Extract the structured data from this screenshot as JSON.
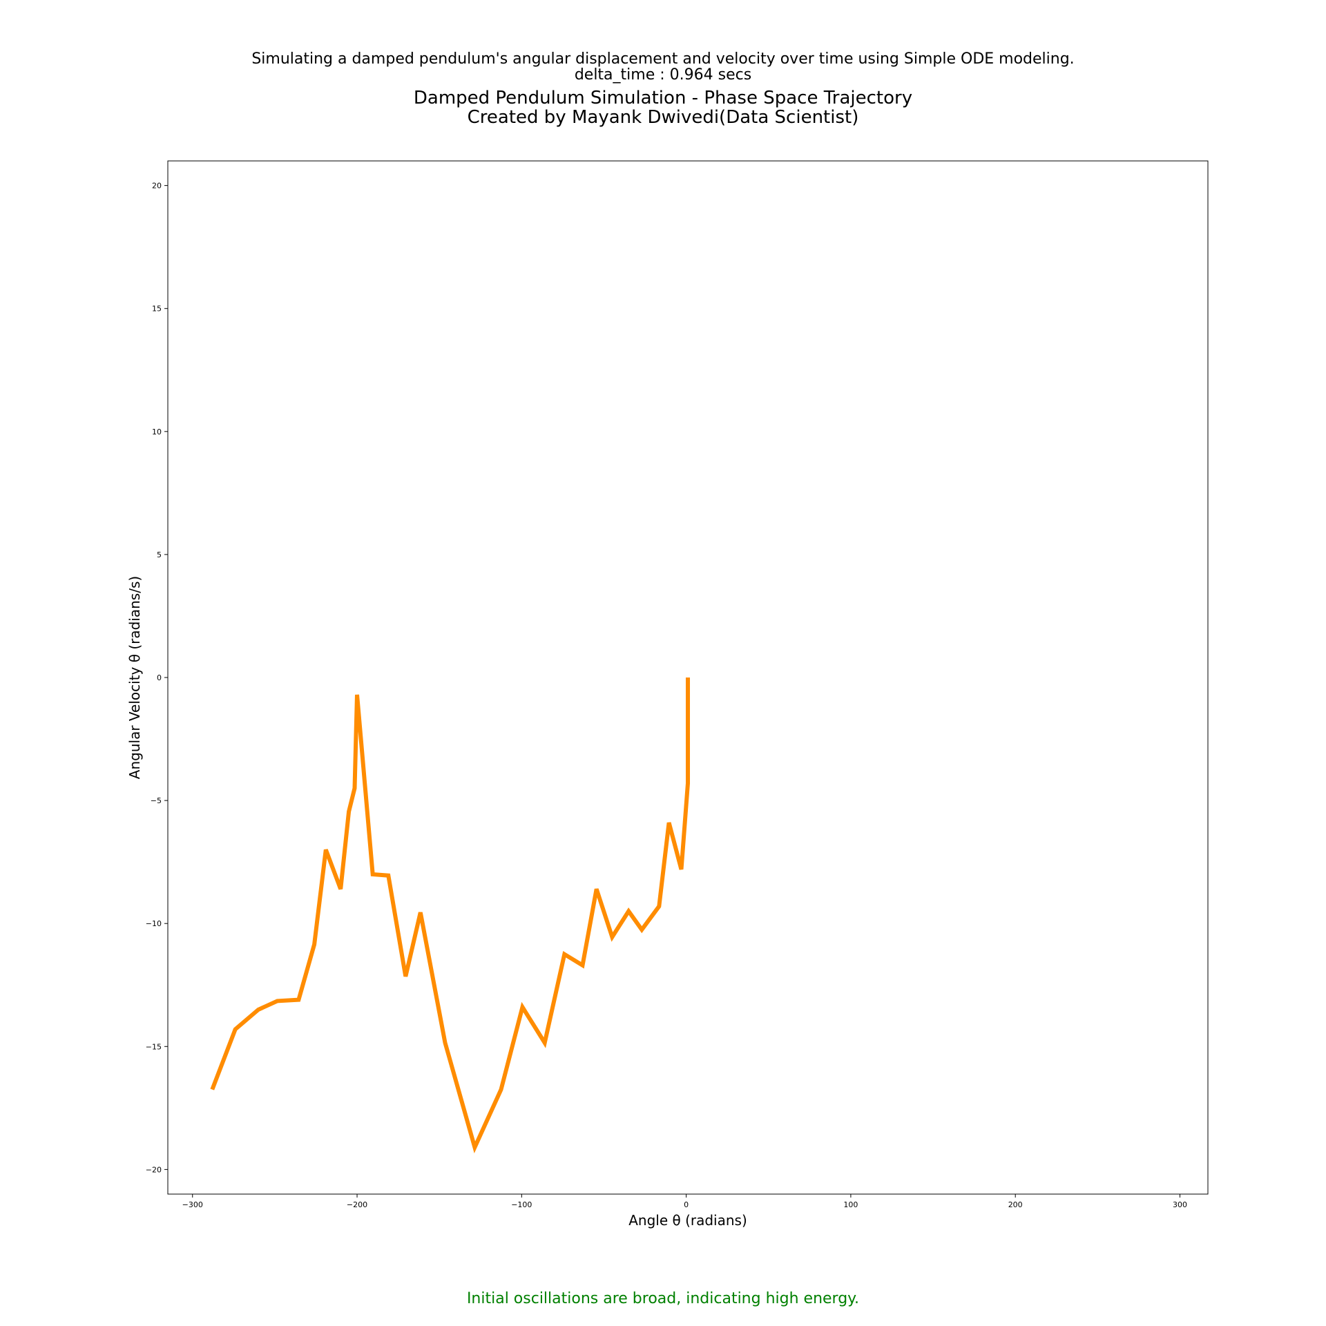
{
  "header": {
    "subtitle_line1": "Simulating a damped pendulum's angular displacement and velocity over time using Simple ODE modeling.",
    "subtitle_line2": "delta_time : 0.964 secs"
  },
  "footer": {
    "note": "Initial oscillations are broad, indicating high energy.",
    "note_color": "#008000"
  },
  "chart_data": {
    "type": "line",
    "title_line1": "Damped Pendulum Simulation - Phase Space Trajectory",
    "title_line2": "Created by Mayank Dwivedi(Data Scientist)",
    "xlabel": "Angle θ (radians)",
    "ylabel": "Angular Velocity θ (radians/s)",
    "xlim": [
      -315,
      317
    ],
    "ylim": [
      -21,
      21
    ],
    "x_ticks": [
      -300,
      -200,
      -100,
      0,
      100,
      200,
      300
    ],
    "x_tick_labels": [
      "−300",
      "−200",
      "−100",
      "0",
      "100",
      "200",
      "300"
    ],
    "y_ticks": [
      20,
      15,
      10,
      5,
      0,
      -5,
      -10,
      -15,
      -20
    ],
    "y_tick_labels": [
      "20",
      "15",
      "10",
      "5",
      "0",
      "−5",
      "−10",
      "−15",
      "−20"
    ],
    "grid": false,
    "line_color": "#ff8c00",
    "series": [
      {
        "x": [
          1,
          1,
          1,
          -3,
          -10.5,
          -16.5,
          -27,
          -35,
          -45,
          -54.5,
          -63,
          -74,
          -86,
          -99.5,
          -112.5,
          -128.5,
          -146.5,
          -161.5,
          -170.5,
          -181,
          -190.5,
          -200,
          -201.5,
          -205,
          -210,
          -219,
          -226,
          -235.5,
          -248.5,
          -260,
          -274,
          -288
        ],
        "y": [
          0,
          -4.1,
          -4.3,
          -7.8,
          -5.9,
          -9.3,
          -10.25,
          -9.5,
          -10.55,
          -8.6,
          -11.7,
          -11.25,
          -14.85,
          -13.4,
          -16.75,
          -19.1,
          -14.85,
          -9.55,
          -12.15,
          -8.05,
          -8.0,
          -0.7,
          -4.5,
          -5.45,
          -8.6,
          -7.0,
          -10.85,
          -13.1,
          -13.15,
          -13.5,
          -14.3,
          -16.75
        ]
      }
    ]
  }
}
